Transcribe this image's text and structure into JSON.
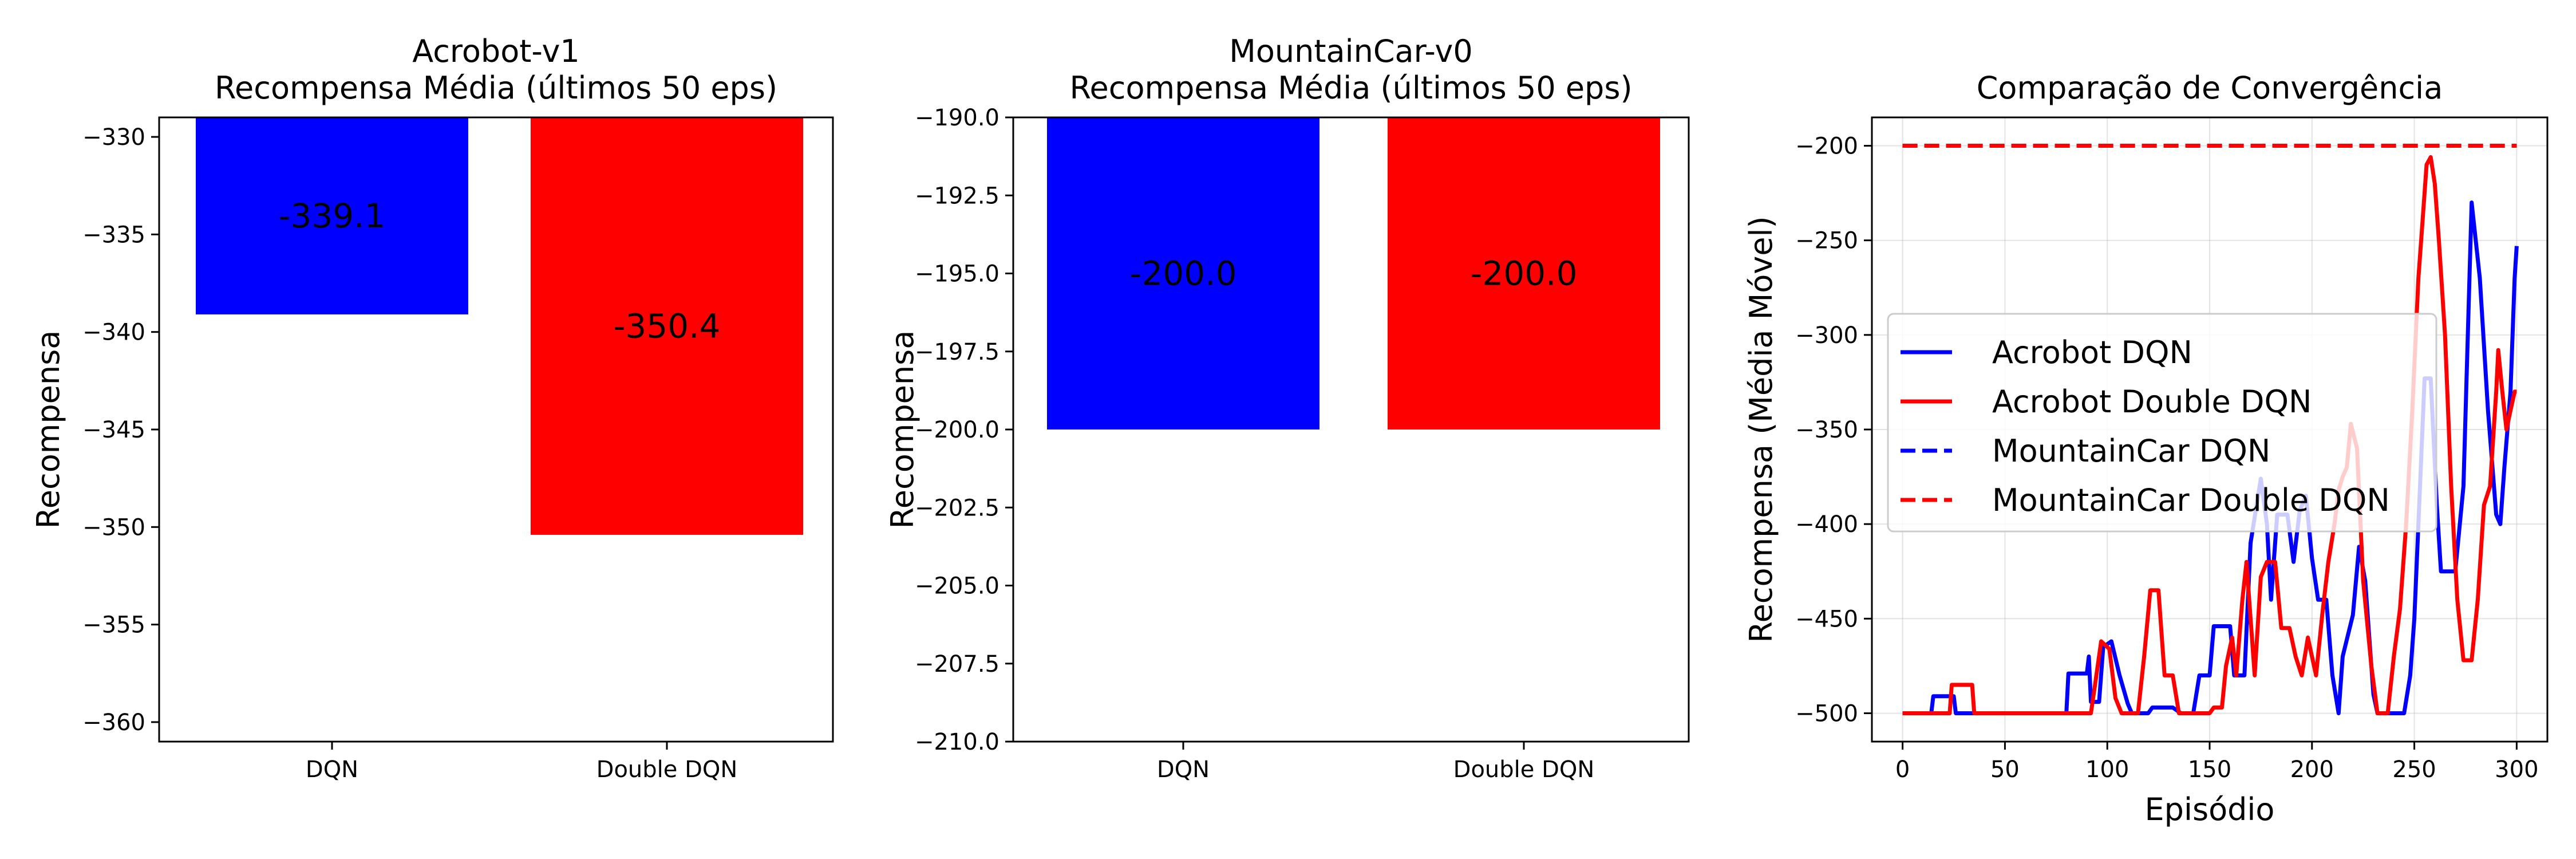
{
  "chart_data": [
    {
      "type": "bar",
      "title": "Acrobot-v1\nRecompensa Média (últimos 50 eps)",
      "xlabel": "",
      "ylabel": "Recompensa",
      "categories": [
        "DQN",
        "Double DQN"
      ],
      "values": [
        -339.1,
        -350.4
      ],
      "value_labels": [
        "-339.1",
        "-350.4"
      ],
      "colors": [
        "#0000ff",
        "#ff0000"
      ],
      "ylim": [
        -361,
        -329
      ],
      "yticks": [
        -330,
        -335,
        -340,
        -345,
        -350,
        -355,
        -360
      ],
      "ytick_labels": [
        "−330",
        "−335",
        "−340",
        "−345",
        "−350",
        "−355",
        "−360"
      ],
      "grid": false
    },
    {
      "type": "bar",
      "title": "MountainCar-v0\nRecompensa Média (últimos 50 eps)",
      "xlabel": "",
      "ylabel": "Recompensa",
      "categories": [
        "DQN",
        "Double DQN"
      ],
      "values": [
        -200.0,
        -200.0
      ],
      "value_labels": [
        "-200.0",
        "-200.0"
      ],
      "colors": [
        "#0000ff",
        "#ff0000"
      ],
      "ylim": [
        -210,
        -190
      ],
      "yticks": [
        -190.0,
        -192.5,
        -195.0,
        -197.5,
        -200.0,
        -202.5,
        -205.0,
        -207.5,
        -210.0
      ],
      "ytick_labels": [
        "−190.0",
        "−192.5",
        "−195.0",
        "−197.5",
        "−200.0",
        "−202.5",
        "−205.0",
        "−207.5",
        "−210.0"
      ],
      "grid": false
    },
    {
      "type": "line",
      "title": "Comparação de Convergência",
      "xlabel": "Episódio",
      "ylabel": "Recompensa (Média Móvel)",
      "xlim": [
        -15,
        315
      ],
      "ylim": [
        -515,
        -185
      ],
      "xticks": [
        0,
        50,
        100,
        150,
        200,
        250,
        300
      ],
      "xtick_labels": [
        "0",
        "50",
        "100",
        "150",
        "200",
        "250",
        "300"
      ],
      "yticks": [
        -200,
        -250,
        -300,
        -350,
        -400,
        -450,
        -500
      ],
      "ytick_labels": [
        "−200",
        "−250",
        "−300",
        "−350",
        "−400",
        "−450",
        "−500"
      ],
      "grid": true,
      "legend_position": "center-left",
      "series": [
        {
          "name": "Acrobot DQN",
          "color": "#0000ff",
          "style": "solid",
          "points": [
            [
              0,
              -500
            ],
            [
              14,
              -500
            ],
            [
              15,
              -491
            ],
            [
              25,
              -491
            ],
            [
              26,
              -500
            ],
            [
              80,
              -500
            ],
            [
              81,
              -479
            ],
            [
              90,
              -479
            ],
            [
              91,
              -470
            ],
            [
              92,
              -494
            ],
            [
              96,
              -494
            ],
            [
              98,
              -465
            ],
            [
              102,
              -462
            ],
            [
              106,
              -480
            ],
            [
              110,
              -495
            ],
            [
              112,
              -500
            ],
            [
              120,
              -500
            ],
            [
              122,
              -497
            ],
            [
              132,
              -497
            ],
            [
              136,
              -500
            ],
            [
              142,
              -500
            ],
            [
              145,
              -480
            ],
            [
              150,
              -480
            ],
            [
              152,
              -454
            ],
            [
              160,
              -454
            ],
            [
              162,
              -480
            ],
            [
              167,
              -480
            ],
            [
              170,
              -410
            ],
            [
              175,
              -376
            ],
            [
              178,
              -400
            ],
            [
              180,
              -440
            ],
            [
              183,
              -395
            ],
            [
              188,
              -395
            ],
            [
              191,
              -420
            ],
            [
              194,
              -393
            ],
            [
              197,
              -385
            ],
            [
              200,
              -418
            ],
            [
              203,
              -440
            ],
            [
              207,
              -440
            ],
            [
              210,
              -480
            ],
            [
              213,
              -500
            ],
            [
              215,
              -470
            ],
            [
              220,
              -448
            ],
            [
              223,
              -412
            ],
            [
              226,
              -430
            ],
            [
              228,
              -460
            ],
            [
              230,
              -490
            ],
            [
              232,
              -500
            ],
            [
              245,
              -500
            ],
            [
              248,
              -480
            ],
            [
              250,
              -450
            ],
            [
              252,
              -400
            ],
            [
              255,
              -323
            ],
            [
              258,
              -323
            ],
            [
              261,
              -390
            ],
            [
              263,
              -425
            ],
            [
              270,
              -425
            ],
            [
              274,
              -380
            ],
            [
              278,
              -230
            ],
            [
              282,
              -270
            ],
            [
              286,
              -340
            ],
            [
              290,
              -395
            ],
            [
              292,
              -400
            ],
            [
              294,
              -370
            ],
            [
              297,
              -330
            ],
            [
              299,
              -270
            ],
            [
              300,
              -253
            ]
          ]
        },
        {
          "name": "Acrobot Double DQN",
          "color": "#ff0000",
          "style": "solid",
          "points": [
            [
              0,
              -500
            ],
            [
              23,
              -500
            ],
            [
              24,
              -485
            ],
            [
              34,
              -485
            ],
            [
              35,
              -500
            ],
            [
              92,
              -500
            ],
            [
              94,
              -485
            ],
            [
              97,
              -462
            ],
            [
              101,
              -466
            ],
            [
              104,
              -492
            ],
            [
              107,
              -500
            ],
            [
              115,
              -500
            ],
            [
              118,
              -470
            ],
            [
              121,
              -435
            ],
            [
              125,
              -435
            ],
            [
              128,
              -480
            ],
            [
              132,
              -480
            ],
            [
              135,
              -500
            ],
            [
              150,
              -500
            ],
            [
              152,
              -497
            ],
            [
              156,
              -497
            ],
            [
              158,
              -475
            ],
            [
              161,
              -460
            ],
            [
              163,
              -480
            ],
            [
              166,
              -440
            ],
            [
              168,
              -420
            ],
            [
              170,
              -450
            ],
            [
              172,
              -480
            ],
            [
              175,
              -428
            ],
            [
              178,
              -420
            ],
            [
              182,
              -420
            ],
            [
              185,
              -455
            ],
            [
              189,
              -455
            ],
            [
              192,
              -470
            ],
            [
              195,
              -480
            ],
            [
              198,
              -460
            ],
            [
              202,
              -480
            ],
            [
              205,
              -448
            ],
            [
              208,
              -420
            ],
            [
              211,
              -400
            ],
            [
              213,
              -382
            ],
            [
              215,
              -375
            ],
            [
              217,
              -370
            ],
            [
              219,
              -347
            ],
            [
              222,
              -360
            ],
            [
              225,
              -430
            ],
            [
              229,
              -475
            ],
            [
              232,
              -500
            ],
            [
              237,
              -500
            ],
            [
              240,
              -470
            ],
            [
              243,
              -445
            ],
            [
              246,
              -400
            ],
            [
              249,
              -340
            ],
            [
              252,
              -270
            ],
            [
              254,
              -240
            ],
            [
              256,
              -210
            ],
            [
              258,
              -206
            ],
            [
              260,
              -220
            ],
            [
              262,
              -250
            ],
            [
              265,
              -300
            ],
            [
              268,
              -380
            ],
            [
              271,
              -440
            ],
            [
              274,
              -472
            ],
            [
              278,
              -472
            ],
            [
              281,
              -440
            ],
            [
              284,
              -390
            ],
            [
              287,
              -380
            ],
            [
              290,
              -330
            ],
            [
              291,
              -308
            ],
            [
              293,
              -330
            ],
            [
              295,
              -350
            ],
            [
              297,
              -340
            ],
            [
              299,
              -330
            ],
            [
              300,
              -330
            ]
          ]
        },
        {
          "name": "MountainCar DQN",
          "color": "#0000ff",
          "style": "dashed",
          "points": [
            [
              0,
              -200
            ],
            [
              300,
              -200
            ]
          ]
        },
        {
          "name": "MountainCar Double DQN",
          "color": "#ff0000",
          "style": "dashed",
          "points": [
            [
              0,
              -200
            ],
            [
              300,
              -200
            ]
          ]
        }
      ]
    }
  ]
}
